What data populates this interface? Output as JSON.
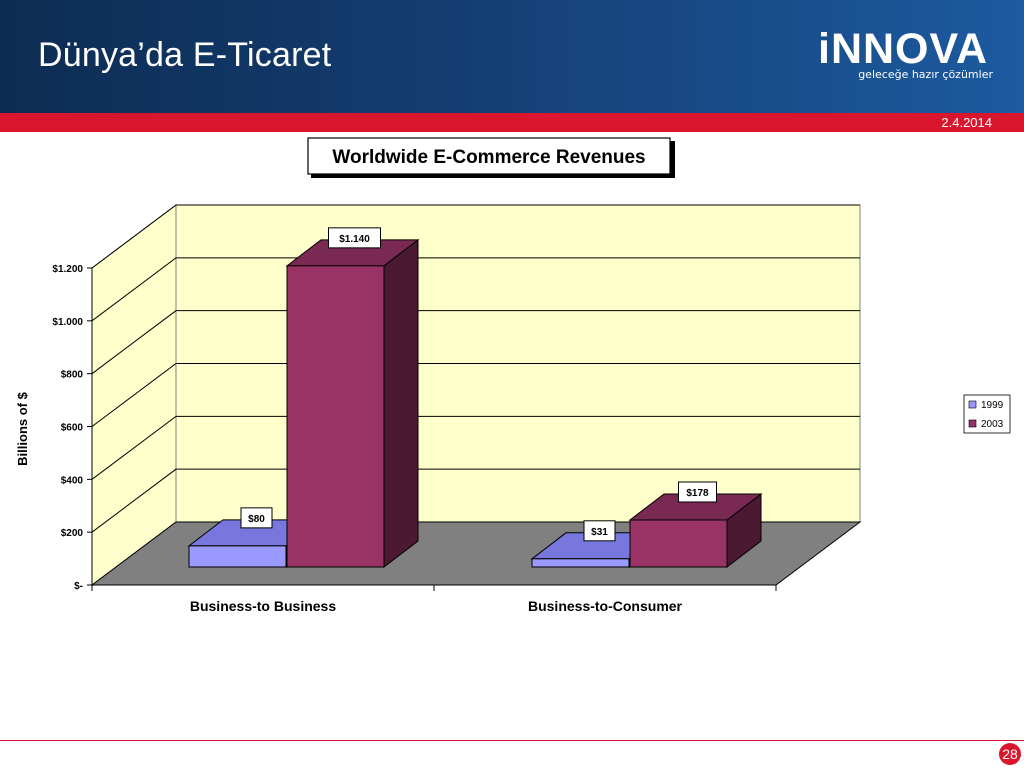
{
  "slide": {
    "title": "Dünya’da E-Ticaret",
    "date": "2.4.2014",
    "page_number": "28"
  },
  "logo": {
    "name": "iNNOVA",
    "tagline": "geleceğe hazır çözümler"
  },
  "colors": {
    "header": "#143e72",
    "accent_red": "#d9162e",
    "plot_back": "#ffffcc",
    "floor": "#808080",
    "series_1999": "#9999ff",
    "series_2003": "#993366"
  },
  "chart_data": {
    "type": "bar",
    "title": "Worldwide E-Commerce Revenues",
    "ylabel": "Billions of $",
    "xlabel": "",
    "categories": [
      "Business-to Business",
      "Business-to-Consumer"
    ],
    "series": [
      {
        "name": "1999",
        "values": [
          80,
          31
        ],
        "labels": [
          "$80",
          "$31"
        ]
      },
      {
        "name": "2003",
        "values": [
          1140,
          178
        ],
        "labels": [
          "$1.140",
          "$178"
        ]
      }
    ],
    "ylim": [
      0,
      1200
    ],
    "yticks": [
      0,
      200,
      400,
      600,
      800,
      1000,
      1200
    ],
    "ytick_labels": [
      "$-",
      "$200",
      "$400",
      "$600",
      "$800",
      "$1.000",
      "$1.200"
    ],
    "legend": "right",
    "grid": true,
    "style": "3d-clustered-column"
  }
}
